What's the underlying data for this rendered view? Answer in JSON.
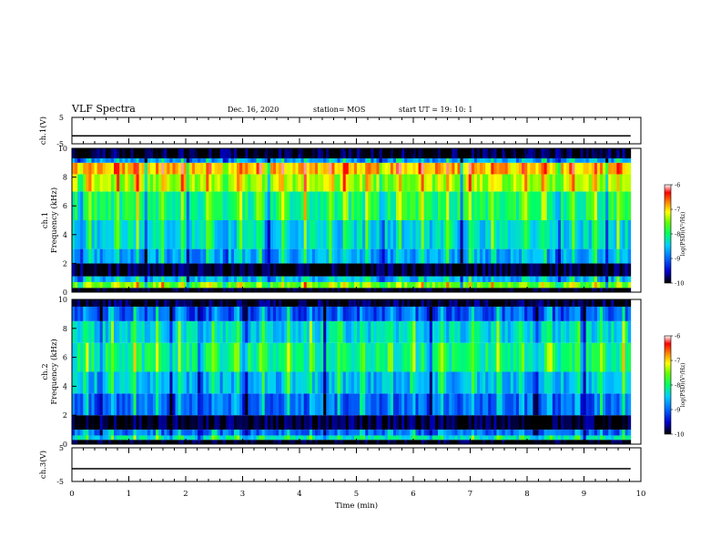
{
  "header": {
    "title": "VLF Spectra",
    "date": "Dec. 16, 2020",
    "station": "station= MOS",
    "start": "start  UT  =   19: 10: 1"
  },
  "colors": {
    "scale": [
      "#000000",
      "#0000cc",
      "#0066ff",
      "#00ccff",
      "#00ff66",
      "#66ff00",
      "#ffff00",
      "#ff8800",
      "#ff0000",
      "#ffffff"
    ]
  },
  "chart_data": [
    {
      "id": "ch1_voltage",
      "type": "line",
      "ylabel": "ch.1(V)",
      "ylim": [
        -5,
        5
      ],
      "ytick_labels": [
        "5",
        "-5"
      ],
      "xlim": [
        0,
        10
      ],
      "series": [
        {
          "x": [
            0,
            9.82
          ],
          "values": [
            -2.0,
            -2.0
          ]
        }
      ]
    },
    {
      "id": "ch1_spectrogram",
      "type": "heatmap",
      "ylabel_channel": "ch.1",
      "ylabel": "Frequency  (kHz)",
      "ylim": [
        0,
        10
      ],
      "ytick_labels": [
        "0",
        "2",
        "4",
        "6",
        "8",
        "10"
      ],
      "xlim": [
        0,
        10
      ],
      "data_xmax": 9.82,
      "colorbar": {
        "label": "log(PSD)(V²/Hz)",
        "range": [
          -10,
          -6
        ],
        "tick_labels": [
          "-6",
          "-7",
          "-8",
          "-9",
          "-10"
        ]
      },
      "frequency_bands_khz": [
        {
          "f0": 0.0,
          "f1": 0.3,
          "level": -10
        },
        {
          "f0": 0.3,
          "f1": 0.7,
          "level": -7.6
        },
        {
          "f0": 0.7,
          "f1": 1.1,
          "level": -8.6
        },
        {
          "f0": 1.1,
          "f1": 2.0,
          "level": -9.9
        },
        {
          "f0": 2.0,
          "f1": 3.0,
          "level": -8.7
        },
        {
          "f0": 3.0,
          "f1": 5.0,
          "level": -8.4
        },
        {
          "f0": 5.0,
          "f1": 7.0,
          "level": -8.0
        },
        {
          "f0": 7.0,
          "f1": 8.2,
          "level": -7.4
        },
        {
          "f0": 8.2,
          "f1": 9.0,
          "level": -6.9
        },
        {
          "f0": 9.0,
          "f1": 9.3,
          "level": -8.8
        },
        {
          "f0": 9.3,
          "f1": 10.0,
          "level": -9.9
        }
      ],
      "bright_events_min": [
        0.3,
        0.8,
        1.15,
        1.6,
        1.95,
        2.4,
        2.95,
        3.3,
        3.7,
        4.1,
        4.55,
        4.8,
        5.2,
        5.75,
        6.15,
        6.6,
        7.0,
        7.4,
        7.95,
        8.3,
        8.8,
        9.2,
        9.6
      ],
      "dark_gaps_min": [
        0.15,
        1.3,
        2.05,
        2.7,
        3.45,
        5.45,
        6.85,
        8.55,
        9.4
      ]
    },
    {
      "id": "ch2_spectrogram",
      "type": "heatmap",
      "ylabel_channel": "ch.2",
      "ylabel": "Frequency  (kHz)",
      "ylim": [
        0,
        10
      ],
      "ytick_labels": [
        "0",
        "2",
        "4",
        "6",
        "8",
        "10"
      ],
      "xlim": [
        0,
        10
      ],
      "data_xmax": 9.82,
      "colorbar": {
        "label": "log(PSD)(V²/Hz)",
        "range": [
          -10,
          -6
        ],
        "tick_labels": [
          "-6",
          "-7",
          "-8",
          "-9",
          "-10"
        ]
      },
      "frequency_bands_khz": [
        {
          "f0": 0.0,
          "f1": 0.3,
          "level": -10
        },
        {
          "f0": 0.3,
          "f1": 0.6,
          "level": -8.3
        },
        {
          "f0": 0.6,
          "f1": 1.0,
          "level": -9.0
        },
        {
          "f0": 1.0,
          "f1": 2.0,
          "level": -9.9
        },
        {
          "f0": 2.0,
          "f1": 3.5,
          "level": -9.0
        },
        {
          "f0": 3.5,
          "f1": 5.0,
          "level": -8.6
        },
        {
          "f0": 5.0,
          "f1": 7.0,
          "level": -8.1
        },
        {
          "f0": 7.0,
          "f1": 8.5,
          "level": -8.4
        },
        {
          "f0": 8.5,
          "f1": 9.5,
          "level": -9.1
        },
        {
          "f0": 9.5,
          "f1": 10.0,
          "level": -9.9
        }
      ],
      "bright_events_min": [
        0.25,
        0.7,
        1.1,
        1.5,
        1.9,
        2.5,
        2.9,
        3.35,
        3.8,
        4.2,
        4.7,
        5.1,
        5.6,
        6.0,
        6.5,
        7.05,
        7.5,
        7.9,
        8.4,
        8.9,
        9.3,
        9.7
      ],
      "dark_gaps_min": [
        0.5,
        1.75,
        2.25,
        3.05,
        4.45,
        6.3,
        8.15,
        9.0
      ]
    },
    {
      "id": "ch3_voltage",
      "type": "line",
      "ylabel": "ch.3(V)",
      "ylim": [
        -5,
        5
      ],
      "ytick_labels": [
        "5",
        "-5"
      ],
      "xlim": [
        0,
        10
      ],
      "xlabel": "Time  (min)",
      "xtick_labels": [
        "0",
        "1",
        "2",
        "3",
        "4",
        "5",
        "6",
        "7",
        "8",
        "9",
        "10"
      ],
      "series": [
        {
          "x": [
            0,
            9.82
          ],
          "values": [
            -1.2,
            -1.2
          ]
        }
      ]
    }
  ]
}
